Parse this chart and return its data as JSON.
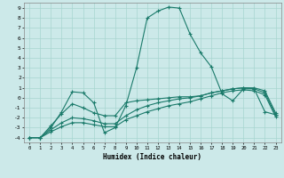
{
  "xlabel": "Humidex (Indice chaleur)",
  "xlim": [
    -0.5,
    23.5
  ],
  "ylim": [
    -4.5,
    9.5
  ],
  "xticks": [
    0,
    1,
    2,
    3,
    4,
    5,
    6,
    7,
    8,
    9,
    10,
    11,
    12,
    13,
    14,
    15,
    16,
    17,
    18,
    19,
    20,
    21,
    22,
    23
  ],
  "yticks": [
    -4,
    -3,
    -2,
    -1,
    0,
    1,
    2,
    3,
    4,
    5,
    6,
    7,
    8,
    9
  ],
  "bg_color": "#cce9e9",
  "line_color": "#1a7a6a",
  "grid_color": "#a8d5d0",
  "curve1_x": [
    0,
    1,
    2,
    3,
    4,
    5,
    6,
    7,
    8,
    9,
    10,
    11,
    12,
    13,
    14,
    15,
    16,
    17,
    18,
    19,
    20,
    21,
    22,
    23
  ],
  "curve1_y": [
    -4.0,
    -4.0,
    -3.0,
    -1.4,
    0.6,
    0.5,
    -0.5,
    -3.5,
    -3.0,
    -0.8,
    3.0,
    8.0,
    8.7,
    9.1,
    9.0,
    6.4,
    4.5,
    3.1,
    0.4,
    -0.3,
    0.9,
    0.9,
    -1.4,
    -1.7
  ],
  "curve2_x": [
    0,
    1,
    2,
    3,
    4,
    5,
    6,
    7,
    8,
    9,
    10,
    11,
    12,
    13,
    14,
    15,
    16,
    17,
    18,
    19,
    20,
    21,
    22,
    23
  ],
  "curve2_y": [
    -4.0,
    -4.0,
    -2.8,
    -1.6,
    -0.6,
    -1.0,
    -1.5,
    -1.8,
    -1.8,
    -0.5,
    -0.3,
    -0.2,
    -0.1,
    0.0,
    0.1,
    0.1,
    0.2,
    0.5,
    0.7,
    0.9,
    1.0,
    1.0,
    0.7,
    -1.5
  ],
  "curve3_x": [
    0,
    1,
    2,
    3,
    4,
    5,
    6,
    7,
    8,
    9,
    10,
    11,
    12,
    13,
    14,
    15,
    16,
    17,
    18,
    19,
    20,
    21,
    22,
    23
  ],
  "curve3_y": [
    -4.0,
    -4.0,
    -3.2,
    -2.5,
    -2.0,
    -2.1,
    -2.3,
    -2.6,
    -2.6,
    -1.8,
    -1.2,
    -0.8,
    -0.5,
    -0.3,
    -0.1,
    0.0,
    0.2,
    0.5,
    0.7,
    0.9,
    1.0,
    0.9,
    0.5,
    -1.7
  ],
  "curve4_x": [
    0,
    1,
    2,
    3,
    4,
    5,
    6,
    7,
    8,
    9,
    10,
    11,
    12,
    13,
    14,
    15,
    16,
    17,
    18,
    19,
    20,
    21,
    22,
    23
  ],
  "curve4_y": [
    -4.0,
    -4.0,
    -3.4,
    -2.9,
    -2.5,
    -2.5,
    -2.7,
    -2.9,
    -2.9,
    -2.2,
    -1.8,
    -1.4,
    -1.1,
    -0.8,
    -0.6,
    -0.4,
    -0.1,
    0.2,
    0.5,
    0.7,
    0.8,
    0.7,
    0.3,
    -1.9
  ]
}
